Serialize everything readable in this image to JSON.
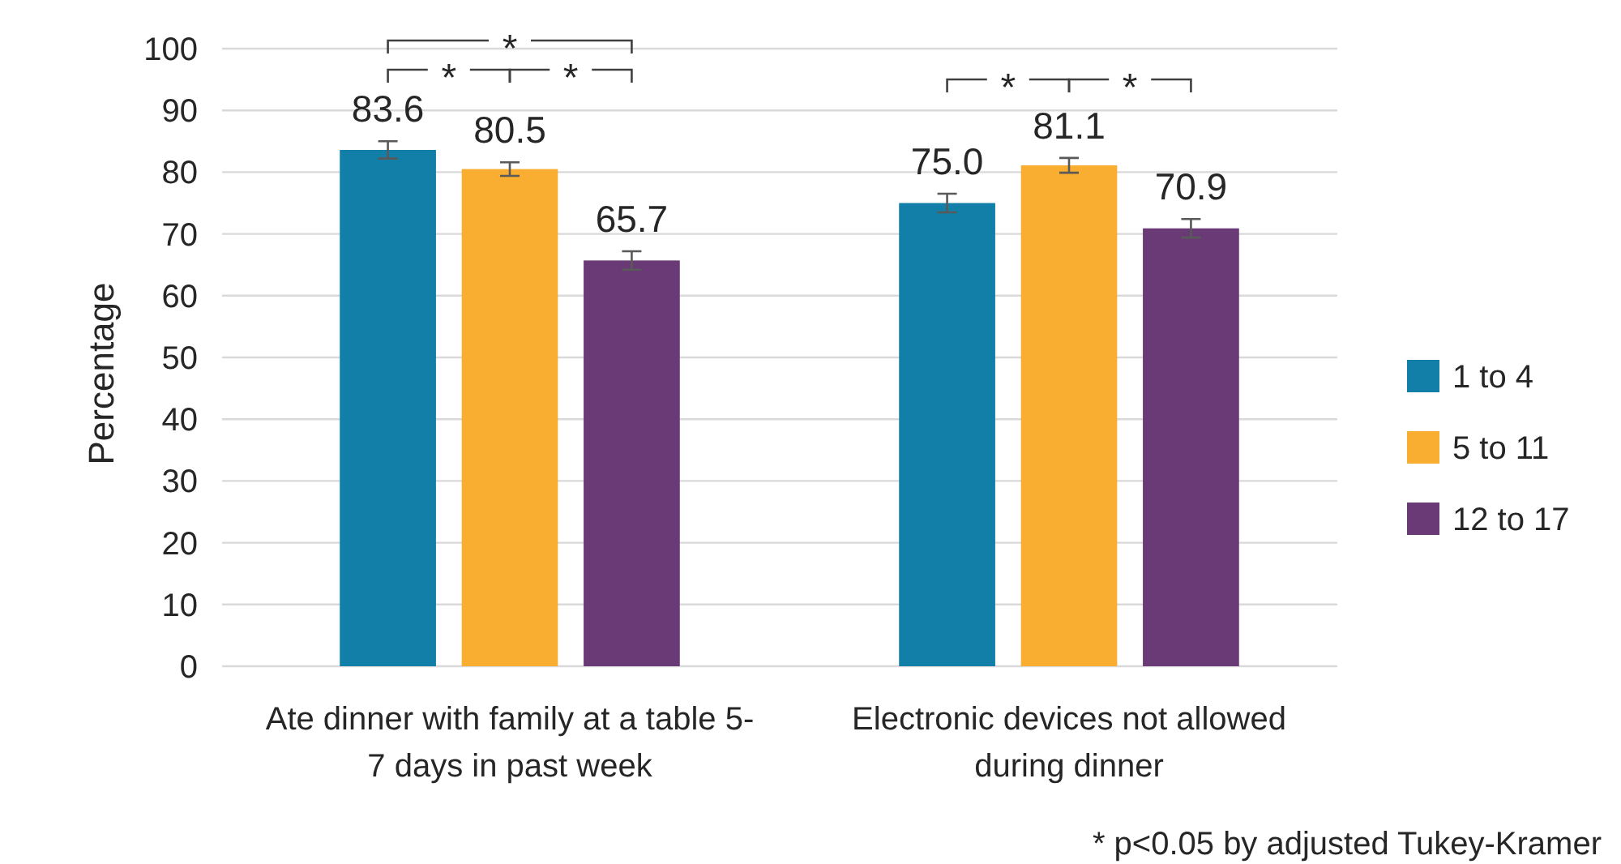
{
  "chart_data": {
    "type": "bar",
    "ylabel": "Percentage",
    "categories": [
      "Ate dinner with family at a table 5-7 days in past week",
      "Electronic devices not allowed during dinner"
    ],
    "series": [
      {
        "name": "1 to 4",
        "color": "#117fa7",
        "values": [
          83.6,
          75.0
        ],
        "value_labels": [
          "83.6",
          "75.0"
        ],
        "errors": [
          1.4,
          1.5
        ]
      },
      {
        "name": "5 to 11",
        "color": "#faae31",
        "values": [
          80.5,
          81.1
        ],
        "value_labels": [
          "80.5",
          "81.1"
        ],
        "errors": [
          1.1,
          1.2
        ]
      },
      {
        "name": "12 to 17",
        "color": "#6a3a76",
        "values": [
          65.7,
          70.9
        ],
        "value_labels": [
          "65.7",
          "70.9"
        ],
        "errors": [
          1.5,
          1.5
        ]
      }
    ],
    "ylim": [
      0,
      100
    ],
    "yticks": [
      0,
      10,
      20,
      30,
      40,
      50,
      60,
      70,
      80,
      90,
      100
    ],
    "grid": "y",
    "legend": "right",
    "annotations": [
      "*",
      "*",
      "*",
      "*",
      "*",
      "* p<0.05 by adjusted Tukey-Kramer"
    ]
  }
}
